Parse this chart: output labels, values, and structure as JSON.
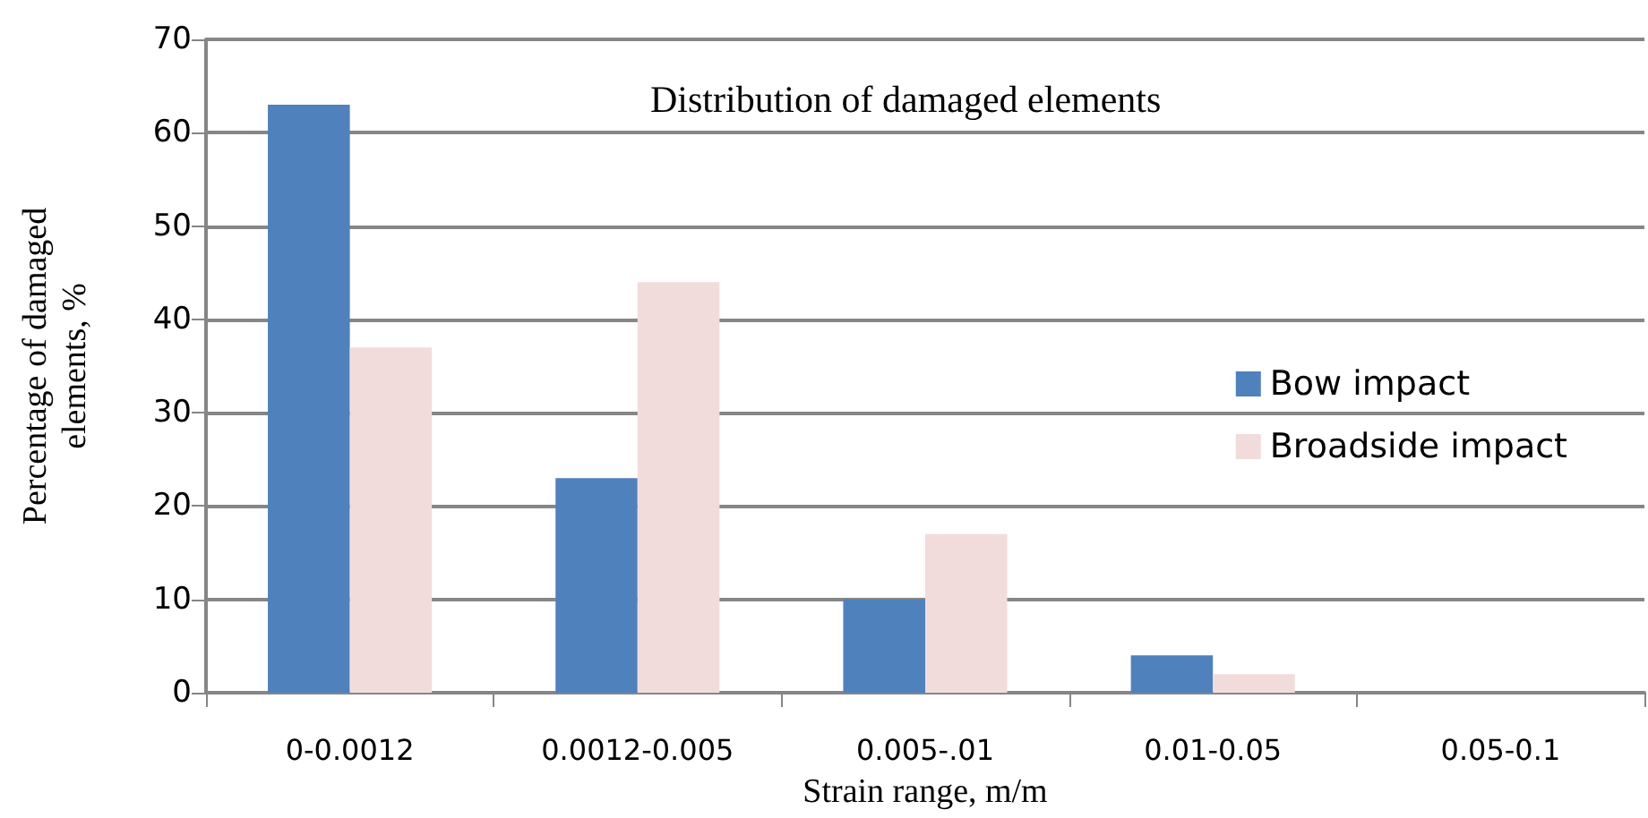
{
  "chart_data": {
    "type": "bar",
    "title": "Distribution of damaged elements",
    "xlabel": "Strain range, m/m",
    "ylabel": "Percentage of damaged\nelements, %",
    "categories": [
      "0-0.0012",
      "0.0012-0.005",
      "0.005-.01",
      "0.01-0.05",
      "0.05-0.1"
    ],
    "series": [
      {
        "name": "Bow impact",
        "color": "#4f81bd",
        "values": [
          63,
          23,
          10,
          4,
          0
        ]
      },
      {
        "name": "Broadside impact",
        "color": "#f2dcdb",
        "values": [
          37,
          44,
          17,
          2,
          0
        ]
      }
    ],
    "ylim": [
      0,
      70
    ],
    "yticks": [
      0,
      10,
      20,
      30,
      40,
      50,
      60,
      70
    ],
    "grid": "y",
    "legend": "right"
  }
}
